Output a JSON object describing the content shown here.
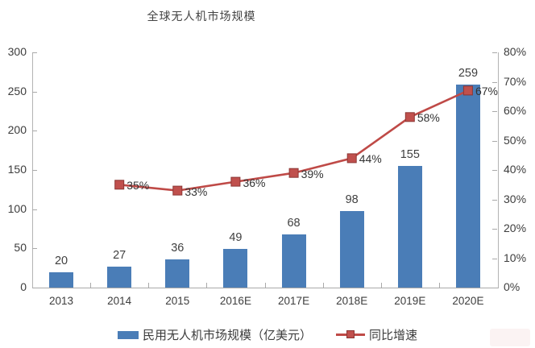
{
  "title": "全球无人机市场规模",
  "chart_data": {
    "type": "bar",
    "subtype": "combo-bar-line",
    "title": "全球无人机市场规模",
    "categories": [
      "2013",
      "2014",
      "2015",
      "2016E",
      "2017E",
      "2018E",
      "2019E",
      "2020E"
    ],
    "series": [
      {
        "name": "民用无人机市场规模（亿美元）",
        "type": "bar",
        "axis": "left",
        "color": "#4a7db7",
        "values": [
          20,
          27,
          36,
          49,
          68,
          98,
          155,
          259
        ],
        "labels": [
          "20",
          "27",
          "36",
          "49",
          "68",
          "98",
          "155",
          "259"
        ]
      },
      {
        "name": "同比增速",
        "type": "line",
        "axis": "right",
        "color": "#c0504d",
        "line_color": "#bf4a47",
        "marker_border_color": "#8c3634",
        "values": [
          null,
          35,
          33,
          36,
          39,
          44,
          58,
          67
        ],
        "labels": [
          null,
          "35%",
          "33%",
          "36%",
          "39%",
          "44%",
          "58%",
          "67%"
        ],
        "unit": "%"
      }
    ],
    "left_axis": {
      "min": 0,
      "max": 300,
      "step": 50,
      "ticks": [
        "0",
        "50",
        "100",
        "150",
        "200",
        "250",
        "300"
      ]
    },
    "right_axis": {
      "min": 0,
      "max": 80,
      "step": 10,
      "ticks": [
        "0%",
        "10%",
        "20%",
        "30%",
        "40%",
        "50%",
        "60%",
        "70%",
        "80%"
      ]
    },
    "grid": false,
    "legend_position": "bottom",
    "xlabel": "",
    "ylabel": ""
  },
  "legend": {
    "items": [
      {
        "label": "民用无人机市场规模（亿美元）",
        "marker": "bar-swatch",
        "color": "#4a7db7"
      },
      {
        "label": "同比增速",
        "marker": "line-marker",
        "color": "#c0504d"
      }
    ]
  },
  "colors": {
    "bar": "#4a7db7",
    "line": "#bf4a47",
    "marker": "#c0504d",
    "marker_border": "#8c3634",
    "axis": "#a9a9a9",
    "text": "#3d3d3d"
  }
}
